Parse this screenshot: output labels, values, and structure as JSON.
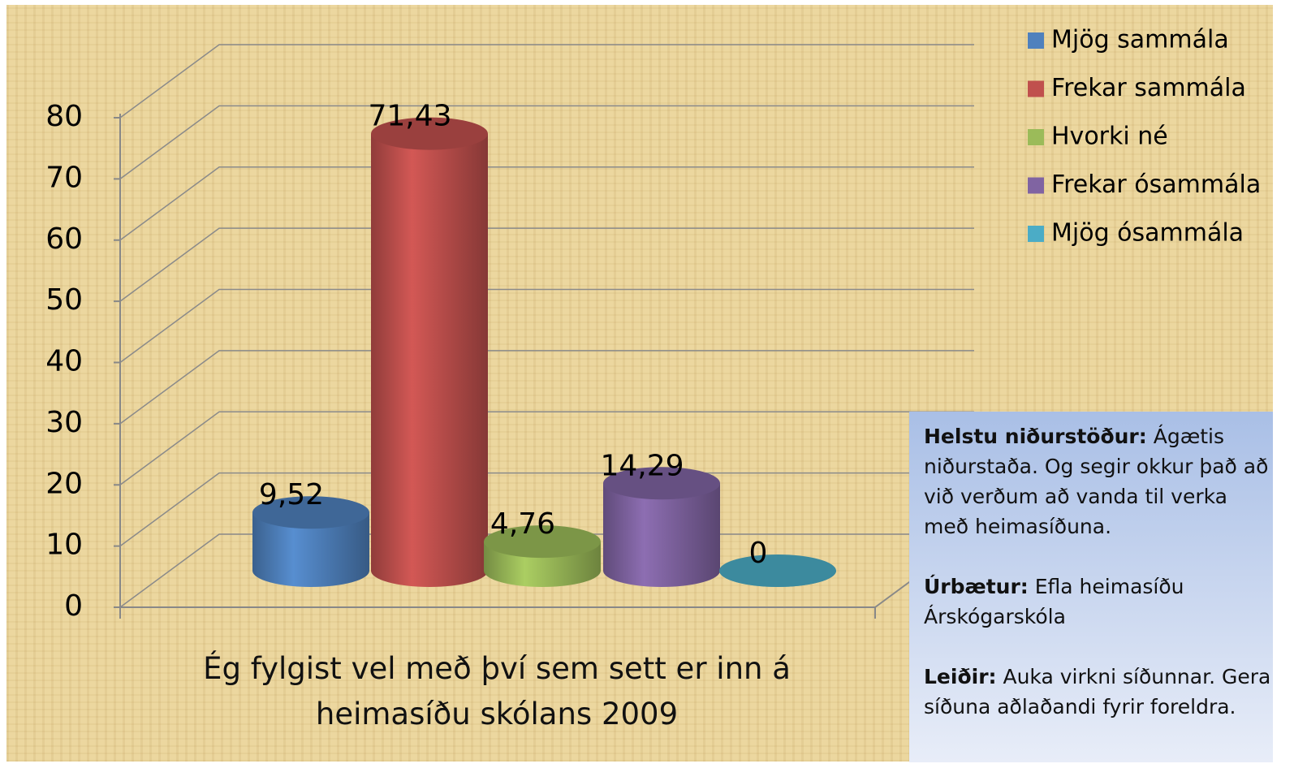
{
  "chart_data": {
    "type": "bar3d",
    "x_label": "Ég fylgist vel með því sem sett er inn á heimasíðu skólans 2009",
    "categories": [
      null
    ],
    "series": [
      {
        "name": "Mjög sammála",
        "color": "#4f81bd",
        "values": [
          9.52
        ],
        "value_labels": [
          "9,52"
        ]
      },
      {
        "name": "Frekar sammála",
        "color": "#c0504d",
        "values": [
          71.43
        ],
        "value_labels": [
          "71,43"
        ]
      },
      {
        "name": "Hvorki né",
        "color": "#9bbb59",
        "values": [
          4.76
        ],
        "value_labels": [
          "4,76"
        ]
      },
      {
        "name": "Frekar ósammála",
        "color": "#8064a2",
        "values": [
          14.29
        ],
        "value_labels": [
          "14,29"
        ]
      },
      {
        "name": "Mjög ósammála",
        "color": "#4bacc6",
        "values": [
          0
        ],
        "value_labels": [
          "0"
        ]
      }
    ],
    "ylim": [
      0,
      80
    ],
    "yticks": [
      0,
      10,
      20,
      30,
      40,
      50,
      60,
      70,
      80
    ],
    "grid": true,
    "legend": "top-right"
  },
  "annotation": {
    "sections": [
      {
        "heading": "Helstu niðurstöður:",
        "text": "Ágætis niðurstaða. Og segir okkur það að við verðum að vanda til verka með heimasíðuna."
      },
      {
        "heading": "Úrbætur:",
        "text": "Efla heimasíðu Árskógarskóla"
      },
      {
        "heading": "Leiðir:",
        "text": "Auka virkni síðunnar. Gera síðuna aðlaðandi fyrir foreldra."
      }
    ]
  }
}
